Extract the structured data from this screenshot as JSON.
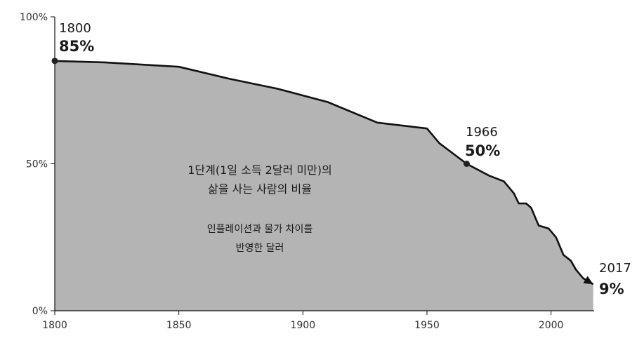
{
  "chart_data": {
    "type": "area",
    "x": [
      1800,
      1820,
      1850,
      1870,
      1890,
      1910,
      1930,
      1950,
      1955,
      1966,
      1975,
      1981,
      1985,
      1987,
      1990,
      1992,
      1995,
      1999,
      2002,
      2005,
      2008,
      2010,
      2013,
      2015,
      2017
    ],
    "y": [
      85,
      84.5,
      83,
      79,
      75.5,
      71,
      64,
      62,
      57,
      50,
      46,
      44,
      40,
      36.5,
      36.5,
      35,
      29,
      28,
      25,
      19,
      17,
      14,
      11,
      10,
      9
    ],
    "xlim": [
      1800,
      2017
    ],
    "ylim": [
      0,
      100
    ],
    "x_ticks": [
      "1800",
      "1850",
      "1900",
      "1950",
      "2000"
    ],
    "y_ticks": [
      "0%",
      "50%",
      "100%"
    ],
    "grid": false,
    "fill_color": "#b4b4b4",
    "line_color": "#111111",
    "annotations": [
      {
        "year": "1800",
        "value": "85%"
      },
      {
        "year": "1966",
        "value": "50%"
      },
      {
        "year": "2017",
        "value": "9%"
      }
    ],
    "title_lines": [
      "1단계(1일 소득 2달러 미만)의",
      "삶을 사는 사람의 비율"
    ],
    "subtitle_lines": [
      "인플레이션과 물가 차이를",
      "반영한 달러"
    ]
  }
}
